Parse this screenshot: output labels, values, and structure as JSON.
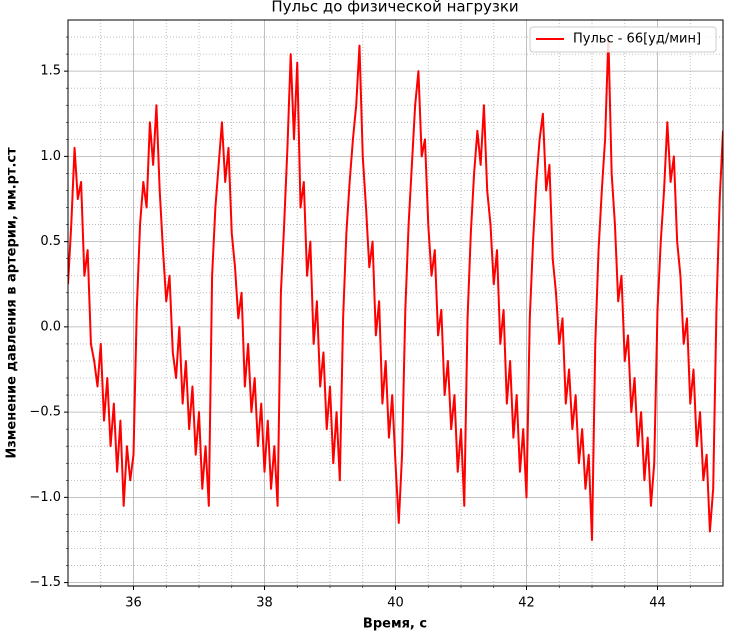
{
  "chart_data": {
    "type": "line",
    "title": "Пульс до физической нагрузки",
    "xlabel": "Время, с",
    "ylabel": "Изменение давления в артерии, мм.рт.ст",
    "x": [
      35,
      35.05,
      35.1,
      35.15,
      35.2,
      35.25,
      35.3,
      35.35,
      35.4,
      35.45,
      35.5,
      35.55,
      35.6,
      35.65,
      35.7,
      35.75,
      35.8,
      35.85,
      35.9,
      35.95,
      36,
      36.05,
      36.1,
      36.15,
      36.2,
      36.25,
      36.3,
      36.35,
      36.4,
      36.45,
      36.5,
      36.55,
      36.6,
      36.65,
      36.7,
      36.75,
      36.8,
      36.85,
      36.9,
      36.95,
      37,
      37.05,
      37.1,
      37.15,
      37.2,
      37.25,
      37.3,
      37.35,
      37.4,
      37.45,
      37.5,
      37.55,
      37.6,
      37.65,
      37.7,
      37.75,
      37.8,
      37.85,
      37.9,
      37.95,
      38,
      38.05,
      38.1,
      38.15,
      38.2,
      38.25,
      38.3,
      38.35,
      38.4,
      38.45,
      38.5,
      38.55,
      38.6,
      38.65,
      38.7,
      38.75,
      38.8,
      38.85,
      38.9,
      38.95,
      39,
      39.05,
      39.1,
      39.15,
      39.2,
      39.25,
      39.3,
      39.35,
      39.4,
      39.45,
      39.5,
      39.55,
      39.6,
      39.65,
      39.7,
      39.75,
      39.8,
      39.85,
      39.9,
      39.95,
      40,
      40.05,
      40.1,
      40.15,
      40.2,
      40.25,
      40.3,
      40.35,
      40.4,
      40.45,
      40.5,
      40.55,
      40.6,
      40.65,
      40.7,
      40.75,
      40.8,
      40.85,
      40.9,
      40.95,
      41,
      41.05,
      41.1,
      41.15,
      41.2,
      41.25,
      41.3,
      41.35,
      41.4,
      41.45,
      41.5,
      41.55,
      41.6,
      41.65,
      41.7,
      41.75,
      41.8,
      41.85,
      41.9,
      41.95,
      42,
      42.05,
      42.1,
      42.15,
      42.2,
      42.25,
      42.3,
      42.35,
      42.4,
      42.45,
      42.5,
      42.55,
      42.6,
      42.65,
      42.7,
      42.75,
      42.8,
      42.85,
      42.9,
      42.95,
      43,
      43.05,
      43.1,
      43.15,
      43.2,
      43.25,
      43.3,
      43.35,
      43.4,
      43.45,
      43.5,
      43.55,
      43.6,
      43.65,
      43.7,
      43.75,
      43.8,
      43.85,
      43.9,
      43.95,
      44,
      44.05,
      44.1,
      44.15,
      44.2,
      44.25,
      44.3,
      44.35,
      44.4,
      44.45,
      44.5,
      44.55,
      44.6,
      44.65,
      44.7,
      44.75,
      44.8,
      44.85,
      44.9,
      44.95,
      45
    ],
    "series": [
      {
        "name": "Пульс - 66[уд/мин]",
        "color": "#ff0000",
        "values": [
          0.25,
          0.6,
          1.05,
          0.75,
          0.85,
          0.3,
          0.45,
          -0.1,
          -0.2,
          -0.35,
          -0.1,
          -0.55,
          -0.3,
          -0.7,
          -0.45,
          -0.85,
          -0.55,
          -1.05,
          -0.7,
          -0.9,
          -0.75,
          0.1,
          0.6,
          0.85,
          0.7,
          1.2,
          0.95,
          1.3,
          0.8,
          0.45,
          0.15,
          0.3,
          -0.15,
          -0.3,
          0.0,
          -0.45,
          -0.2,
          -0.6,
          -0.35,
          -0.75,
          -0.5,
          -0.95,
          -0.7,
          -1.05,
          0.3,
          0.7,
          0.95,
          1.2,
          0.85,
          1.05,
          0.55,
          0.35,
          0.05,
          0.2,
          -0.35,
          -0.1,
          -0.5,
          -0.3,
          -0.7,
          -0.45,
          -0.85,
          -0.55,
          -0.95,
          -0.7,
          -1.05,
          0.2,
          0.6,
          1.05,
          1.6,
          1.1,
          1.55,
          0.7,
          0.85,
          0.3,
          0.5,
          -0.1,
          0.15,
          -0.35,
          -0.15,
          -0.6,
          -0.35,
          -0.8,
          -0.5,
          -0.9,
          0.05,
          0.55,
          0.85,
          1.1,
          1.3,
          1.65,
          1.0,
          0.7,
          0.35,
          0.5,
          -0.05,
          0.15,
          -0.45,
          -0.2,
          -0.65,
          -0.4,
          -0.8,
          -1.15,
          -0.75,
          0.1,
          0.6,
          0.95,
          1.3,
          1.5,
          1.0,
          1.1,
          0.6,
          0.3,
          0.45,
          -0.05,
          0.1,
          -0.4,
          -0.2,
          -0.6,
          -0.4,
          -0.85,
          -0.6,
          -1.05,
          0.05,
          0.55,
          0.9,
          1.15,
          0.95,
          1.3,
          0.8,
          0.6,
          0.25,
          0.45,
          -0.1,
          0.1,
          -0.45,
          -0.2,
          -0.65,
          -0.4,
          -0.85,
          -0.6,
          -1.0,
          0.05,
          0.5,
          0.85,
          1.1,
          1.25,
          0.8,
          0.95,
          0.4,
          0.2,
          -0.1,
          0.05,
          -0.45,
          -0.25,
          -0.6,
          -0.4,
          -0.8,
          -0.6,
          -0.95,
          -0.75,
          -1.25,
          -0.1,
          0.45,
          0.8,
          1.1,
          1.7,
          0.9,
          0.6,
          0.15,
          0.3,
          -0.2,
          -0.05,
          -0.5,
          -0.3,
          -0.7,
          -0.5,
          -0.9,
          -0.65,
          -1.05,
          -0.8,
          0.1,
          0.5,
          0.8,
          1.2,
          0.85,
          1.0,
          0.5,
          0.3,
          -0.1,
          0.05,
          -0.45,
          -0.25,
          -0.7,
          -0.5,
          -0.9,
          -0.75,
          -1.2,
          -0.95,
          0.1,
          0.75,
          1.15
        ]
      }
    ],
    "xlim": [
      35,
      45
    ],
    "xticks": [
      36,
      38,
      40,
      42,
      44
    ],
    "xminor": [
      35.5,
      36.5,
      37,
      37.5,
      38.5,
      39,
      39.5,
      40.5,
      41,
      41.5,
      42.5,
      43,
      43.5,
      44.5
    ],
    "ylim": [
      -1.52,
      1.8
    ],
    "yticks": [
      {
        "value": -1.5,
        "label": "−1.5"
      },
      {
        "value": -1.0,
        "label": "−1.0"
      },
      {
        "value": -0.5,
        "label": "−0.5"
      },
      {
        "value": 0,
        "label": "0.0"
      },
      {
        "value": 0.5,
        "label": "0.5"
      },
      {
        "value": 1.0,
        "label": "1.0"
      },
      {
        "value": 1.5,
        "label": "1.5"
      }
    ],
    "yminor": [
      -1.4,
      -1.3,
      -1.2,
      -1.1,
      -0.9,
      -0.8,
      -0.7,
      -0.6,
      -0.4,
      -0.3,
      -0.2,
      -0.1,
      0.1,
      0.2,
      0.3,
      0.4,
      0.6,
      0.7,
      0.8,
      0.9,
      1.1,
      1.2,
      1.3,
      1.4,
      1.6,
      1.7
    ],
    "grid": true,
    "legend": "upper right"
  }
}
